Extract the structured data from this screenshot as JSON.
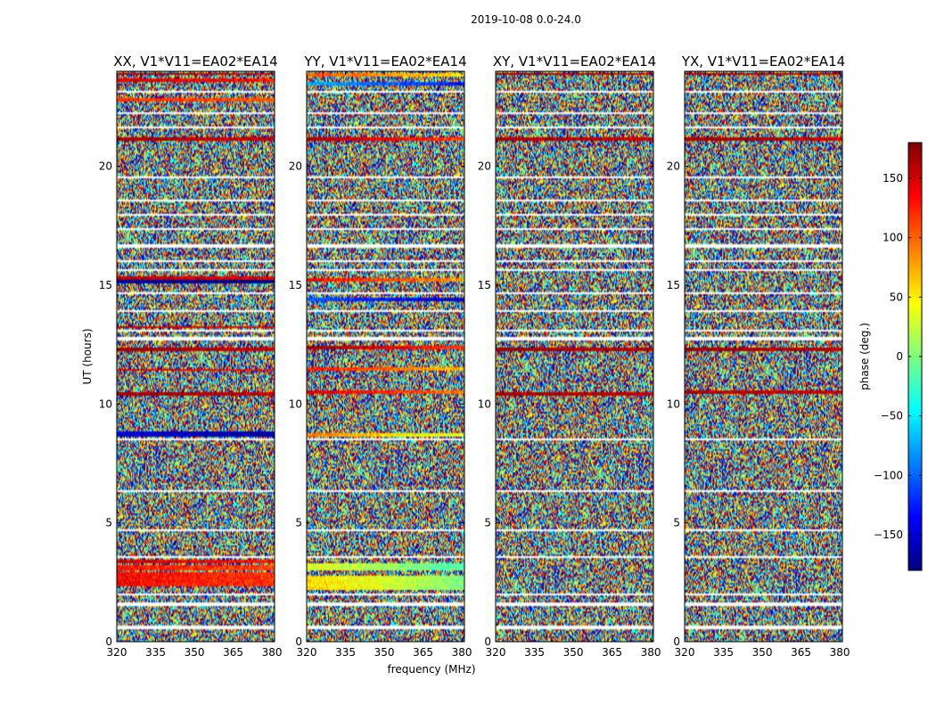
{
  "suptitle": "2019-10-08 0.0-24.0",
  "colors": {
    "jet": [
      "#00007f",
      "#0000ff",
      "#007fff",
      "#00ffff",
      "#7fff7f",
      "#ffff00",
      "#ff7f00",
      "#ff0000",
      "#7f0000"
    ],
    "frame": "#000000",
    "flag": "#ffffff"
  },
  "chart_data": {
    "type": "heatmap",
    "xlabel": "frequency (MHz)",
    "ylabel": "UT (hours)",
    "xlim": [
      320,
      381
    ],
    "ylim": [
      0,
      24
    ],
    "x_ticks": [
      "320",
      "335",
      "350",
      "365",
      "380"
    ],
    "x_tick_values": [
      320,
      335,
      350,
      365,
      380
    ],
    "y_ticks": [
      "0",
      "5",
      "10",
      "15",
      "20"
    ],
    "y_tick_values": [
      0,
      5,
      10,
      15,
      20
    ],
    "panels": [
      {
        "title": "XX, V1*V11=EA02*EA14",
        "coherent_bands": [
          [
            23.85,
            23.95,
            170
          ],
          [
            23.55,
            23.7,
            150
          ],
          [
            22.7,
            22.9,
            120
          ],
          [
            21.05,
            21.2,
            170
          ],
          [
            15.25,
            15.35,
            160
          ],
          [
            15.1,
            15.2,
            -170
          ],
          [
            13.2,
            13.3,
            160
          ],
          [
            12.2,
            12.4,
            175
          ],
          [
            11.4,
            11.5,
            150
          ],
          [
            10.35,
            10.5,
            170
          ],
          [
            8.65,
            8.85,
            -150
          ],
          [
            3.3,
            3.45,
            150
          ],
          [
            3.0,
            3.2,
            130
          ],
          [
            2.3,
            2.9,
            135
          ]
        ]
      },
      {
        "title": "YY, V1*V11=EA02*EA14",
        "coherent_bands": [
          [
            23.8,
            23.95,
            110
          ],
          [
            23.4,
            23.55,
            -70
          ],
          [
            21.05,
            21.2,
            170
          ],
          [
            15.15,
            15.3,
            140
          ],
          [
            14.3,
            14.45,
            -100
          ],
          [
            12.3,
            12.45,
            175
          ],
          [
            11.4,
            11.55,
            130
          ],
          [
            10.4,
            10.55,
            150
          ],
          [
            8.6,
            8.8,
            90
          ],
          [
            3.0,
            3.3,
            40
          ],
          [
            2.2,
            2.8,
            60
          ]
        ]
      },
      {
        "title": "XY, V1*V11=EA02*EA14",
        "coherent_bands": [
          [
            23.85,
            23.95,
            175
          ],
          [
            21.05,
            21.2,
            170
          ],
          [
            12.2,
            12.4,
            175
          ],
          [
            10.35,
            10.5,
            170
          ]
        ]
      },
      {
        "title": "YX, V1*V11=EA02*EA14",
        "coherent_bands": [
          [
            23.85,
            23.95,
            175
          ],
          [
            21.05,
            21.2,
            170
          ],
          [
            12.2,
            12.4,
            175
          ],
          [
            10.4,
            10.55,
            170
          ]
        ]
      }
    ],
    "flagged_time_ranges": [
      [
        0.55,
        0.65
      ],
      [
        1.5,
        1.62
      ],
      [
        1.95,
        2.05
      ],
      [
        3.55,
        3.62
      ],
      [
        4.65,
        4.72
      ],
      [
        6.3,
        6.36
      ],
      [
        6.8,
        6.86
      ],
      [
        7.4,
        7.46
      ],
      [
        8.45,
        8.55
      ],
      [
        9.8,
        9.86
      ],
      [
        12.7,
        12.8
      ],
      [
        13.05,
        13.12
      ],
      [
        13.9,
        13.98
      ],
      [
        14.6,
        14.68
      ],
      [
        15.6,
        15.68
      ],
      [
        16.0,
        16.08
      ],
      [
        16.6,
        16.75
      ],
      [
        17.35,
        17.42
      ],
      [
        17.9,
        17.97
      ],
      [
        18.5,
        18.57
      ],
      [
        19.5,
        19.56
      ],
      [
        21.6,
        21.68
      ],
      [
        22.2,
        22.27
      ],
      [
        23.1,
        23.17
      ]
    ],
    "colorbar": {
      "label": "phase (deg.)",
      "range": [
        -180,
        180
      ],
      "ticks": [
        "−150",
        "−100",
        "−50",
        "0",
        "50",
        "100",
        "150"
      ],
      "tick_values": [
        -150,
        -100,
        -50,
        0,
        50,
        100,
        150
      ]
    }
  }
}
